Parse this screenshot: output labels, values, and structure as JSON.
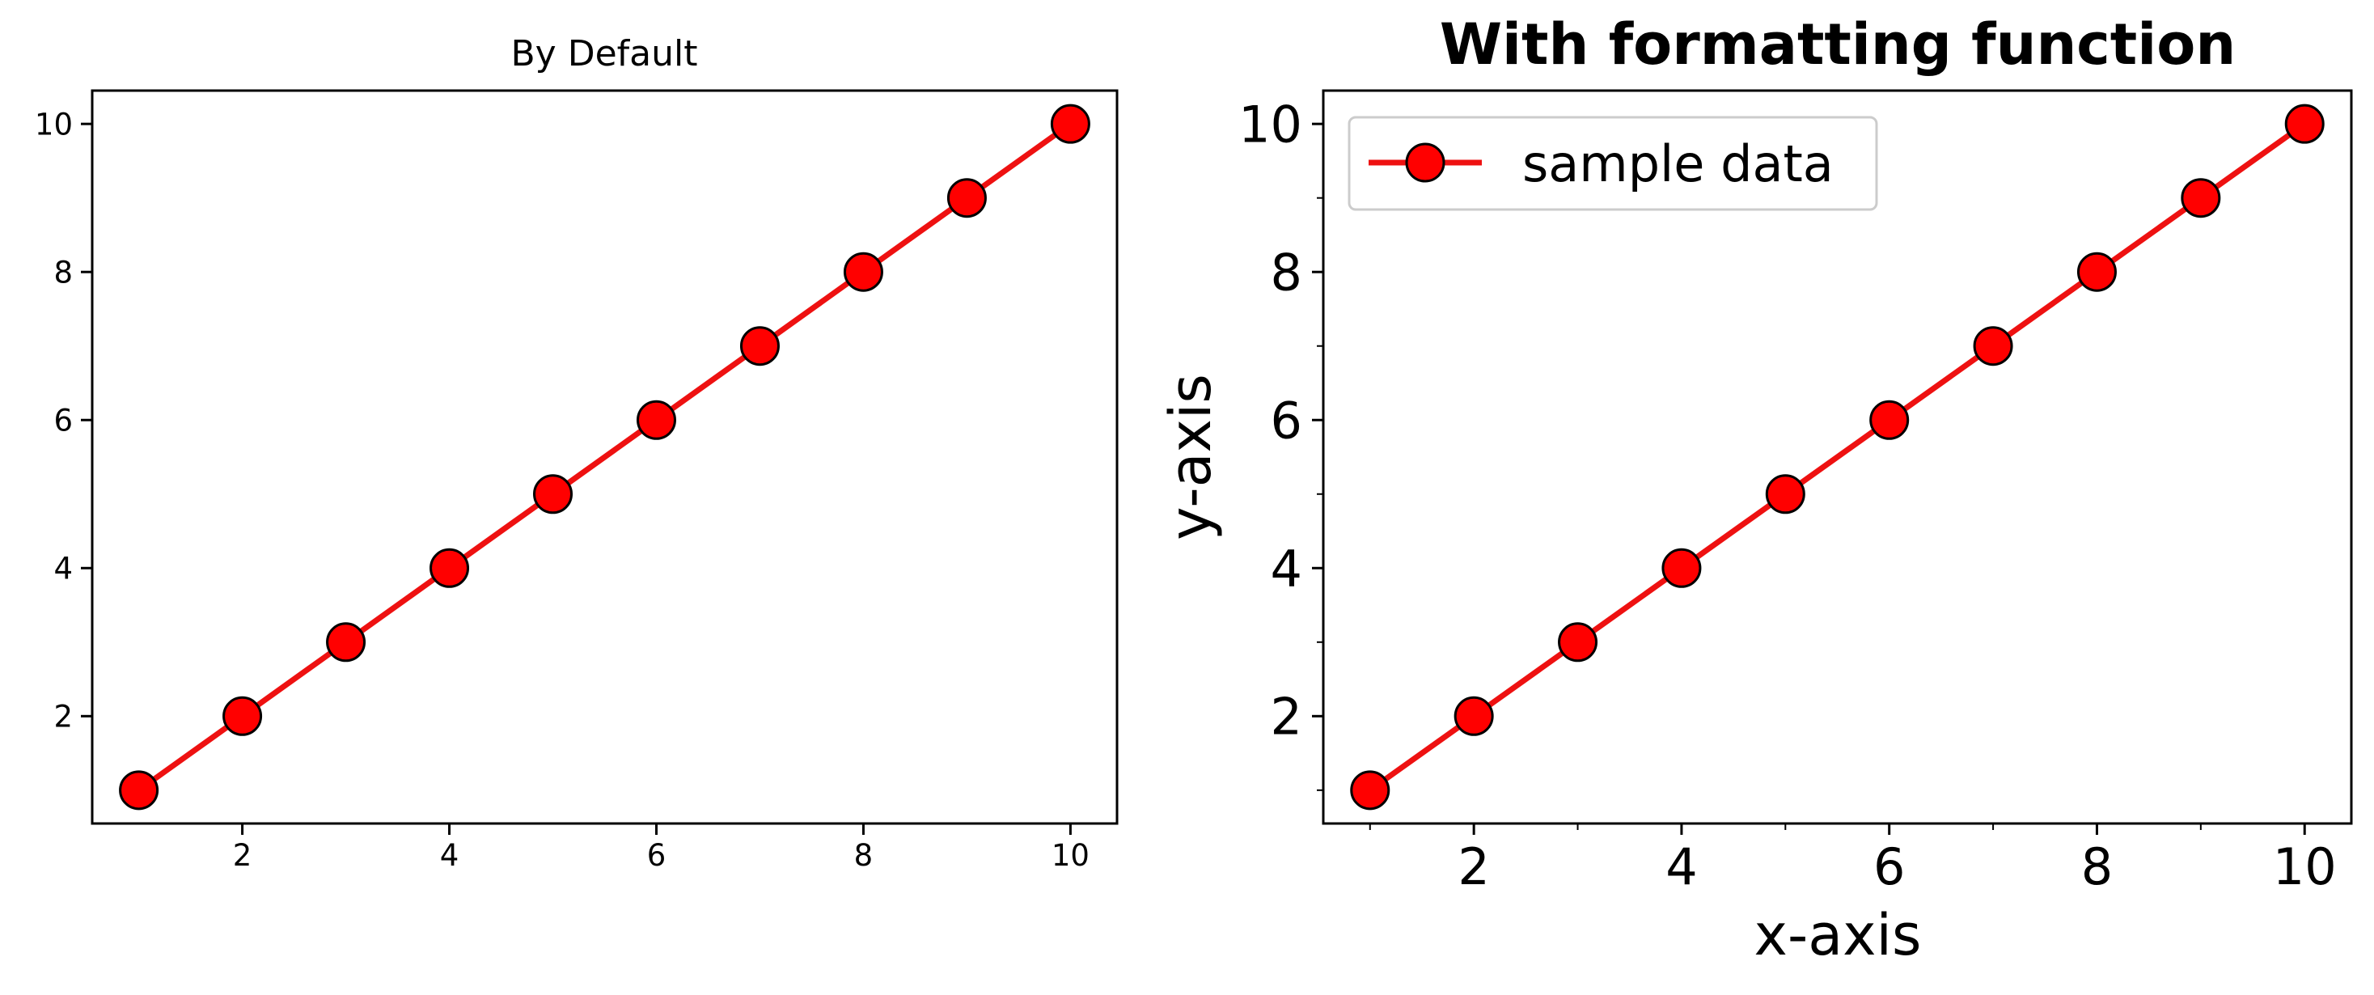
{
  "chart_data": [
    {
      "type": "line",
      "title": "By Default",
      "xlabel": "",
      "ylabel": "",
      "x": [
        1,
        2,
        3,
        4,
        5,
        6,
        7,
        8,
        9,
        10
      ],
      "series": [
        {
          "values": [
            1,
            2,
            3,
            4,
            5,
            6,
            7,
            8,
            9,
            10
          ]
        }
      ],
      "xlim": [
        0.55,
        10.45
      ],
      "ylim": [
        0.55,
        10.45
      ],
      "xticks": [
        "2",
        "4",
        "6",
        "8",
        "10"
      ],
      "yticks": [
        "2",
        "4",
        "6",
        "8",
        "10"
      ],
      "grid": false,
      "legend": "none",
      "line_color": "#ee1111",
      "marker_color": "#ff0000",
      "marker_edge_color": "#000000",
      "marker": "circle"
    },
    {
      "type": "line",
      "title": "With formatting function",
      "xlabel": "x-axis",
      "ylabel": "y-axis",
      "x": [
        1,
        2,
        3,
        4,
        5,
        6,
        7,
        8,
        9,
        10
      ],
      "series": [
        {
          "name": "sample data",
          "values": [
            1,
            2,
            3,
            4,
            5,
            6,
            7,
            8,
            9,
            10
          ]
        }
      ],
      "xlim": [
        0.55,
        10.45
      ],
      "ylim": [
        0.55,
        10.45
      ],
      "xticks": [
        "2",
        "4",
        "6",
        "8",
        "10"
      ],
      "yticks": [
        "2",
        "4",
        "6",
        "8",
        "10"
      ],
      "minor_ticks": true,
      "grid": false,
      "legend": "top-left",
      "line_color": "#ee1111",
      "marker_color": "#ff0000",
      "marker_edge_color": "#000000",
      "marker": "circle"
    }
  ]
}
